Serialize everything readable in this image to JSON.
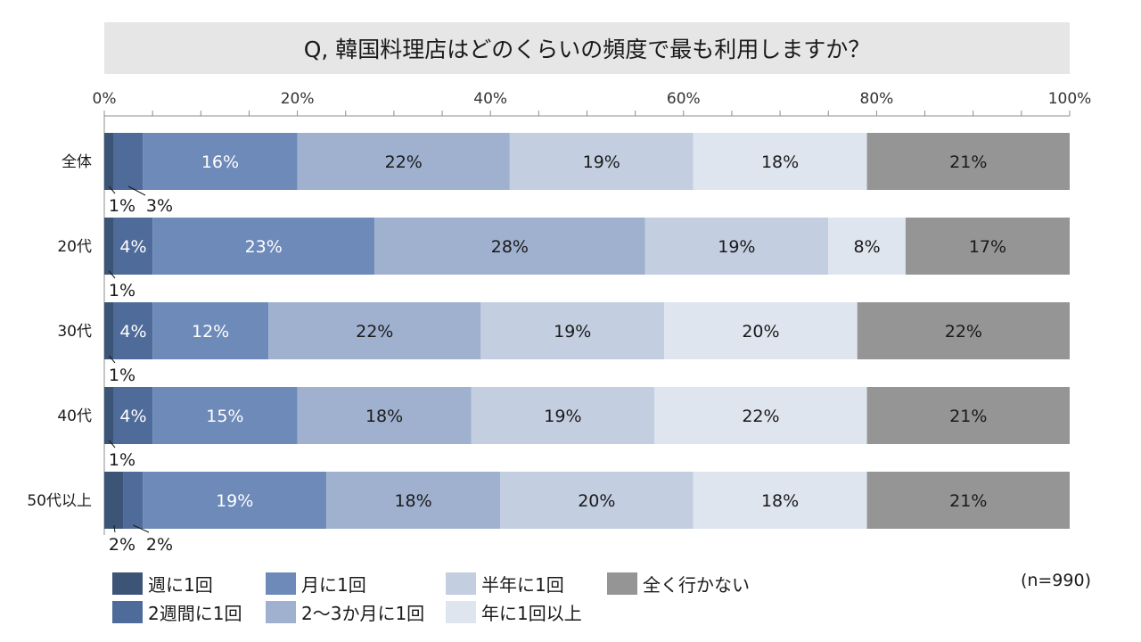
{
  "chart_data": {
    "type": "bar",
    "orientation": "horizontal",
    "stacked": "percent",
    "title": "Q, 韓国料理店はどのくらいの頻度で最も利用しますか？",
    "categories": [
      "全体",
      "20代",
      "30代",
      "40代",
      "50代以上"
    ],
    "xlim": [
      0,
      100
    ],
    "xticks": [
      "0%",
      "20%",
      "40%",
      "60%",
      "80%",
      "100%"
    ],
    "series": [
      {
        "name": "週に1回",
        "color": "#3c5475",
        "text_color": "#ffffff",
        "values": [
          1,
          1,
          1,
          1,
          2
        ],
        "labels": [
          "1%",
          "1%",
          "1%",
          "1%",
          "2%"
        ]
      },
      {
        "name": "2週間に1回",
        "color": "#4e6b99",
        "text_color": "#ffffff",
        "values": [
          3,
          4,
          4,
          4,
          2
        ],
        "labels": [
          "3%",
          "4%",
          "4%",
          "4%",
          "2%"
        ]
      },
      {
        "name": "月に1回",
        "color": "#6d8ab8",
        "text_color": "#ffffff",
        "values": [
          16,
          23,
          12,
          15,
          19
        ],
        "labels": [
          "16%",
          "23%",
          "12%",
          "15%",
          "19%"
        ]
      },
      {
        "name": "2～3か月に1回",
        "color": "#9fb1cf",
        "text_color": "#1a1a1a",
        "values": [
          22,
          28,
          22,
          18,
          18
        ],
        "labels": [
          "22%",
          "28%",
          "22%",
          "18%",
          "18%"
        ]
      },
      {
        "name": "半年に1回",
        "color": "#c3cee1",
        "text_color": "#1a1a1a",
        "values": [
          19,
          19,
          19,
          19,
          20
        ],
        "labels": [
          "19%",
          "19%",
          "19%",
          "19%",
          "20%"
        ]
      },
      {
        "name": "年に1回以上",
        "color": "#dfe5ef",
        "text_color": "#1a1a1a",
        "values": [
          18,
          8,
          20,
          22,
          18
        ],
        "labels": [
          "18%",
          "8%",
          "20%",
          "22%",
          "18%"
        ]
      },
      {
        "name": "全く行かない",
        "color": "#959595",
        "text_color": "#1a1a1a",
        "values": [
          21,
          17,
          22,
          21,
          21
        ],
        "labels": [
          "21%",
          "17%",
          "22%",
          "21%",
          "21%"
        ]
      }
    ],
    "legend_position": "bottom-left",
    "note": "(n=990)"
  }
}
